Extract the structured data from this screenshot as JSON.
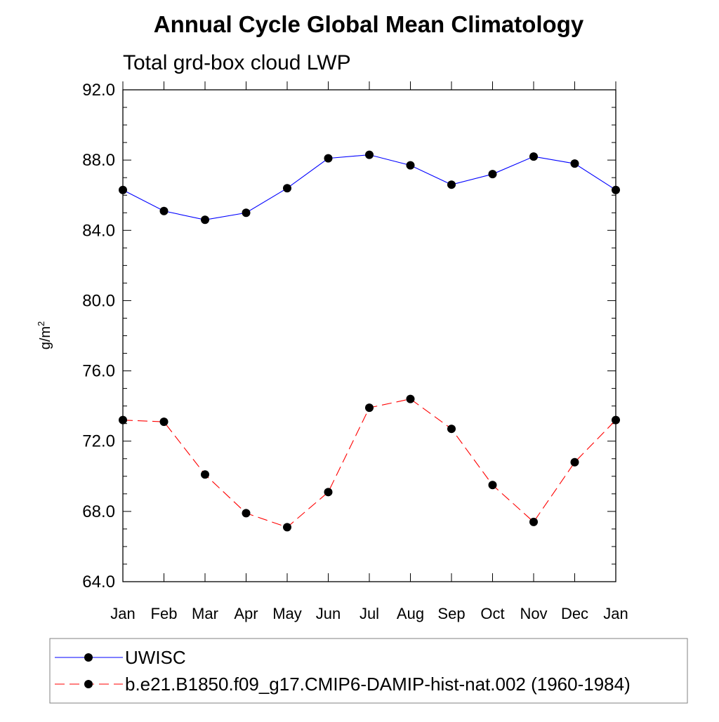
{
  "chart_data": {
    "type": "line",
    "title": "Annual Cycle Global Mean Climatology",
    "subtitle": "Total grd-box cloud LWP",
    "ylabel_base": "g/m",
    "ylabel_sup": "2",
    "ylim": [
      64.0,
      92.0
    ],
    "yticks": [
      "64.0",
      "68.0",
      "72.0",
      "76.0",
      "80.0",
      "84.0",
      "88.0",
      "92.0"
    ],
    "categories": [
      "Jan",
      "Feb",
      "Mar",
      "Apr",
      "May",
      "Jun",
      "Jul",
      "Aug",
      "Sep",
      "Oct",
      "Nov",
      "Dec",
      "Jan"
    ],
    "grid": false,
    "legend_position": "bottom",
    "series": [
      {
        "name": "UWISC",
        "color": "#0000ff",
        "dash": "solid",
        "values": [
          86.3,
          85.1,
          84.6,
          85.0,
          86.4,
          88.1,
          88.3,
          87.7,
          86.6,
          87.2,
          88.2,
          87.8,
          86.3
        ]
      },
      {
        "name": "b.e21.B1850.f09_g17.CMIP6-DAMIP-hist-nat.002 (1960-1984)",
        "color": "#ff0000",
        "dash": "dashed",
        "values": [
          73.2,
          73.1,
          70.1,
          67.9,
          67.1,
          69.1,
          73.9,
          74.4,
          72.7,
          69.5,
          67.4,
          70.8,
          73.2
        ]
      }
    ]
  }
}
